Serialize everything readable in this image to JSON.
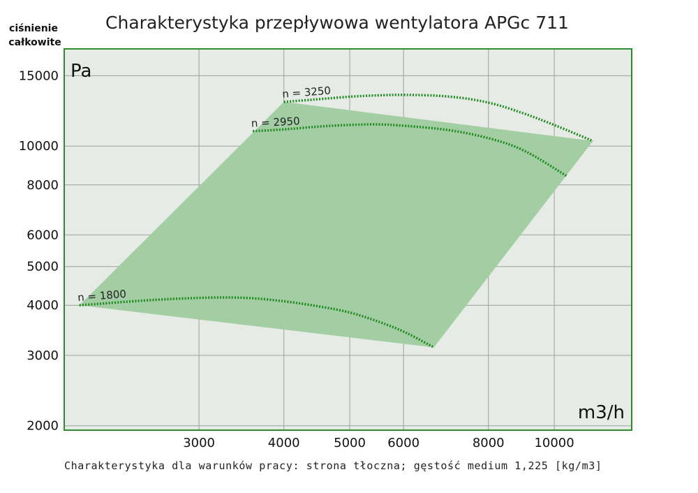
{
  "chart_data": {
    "type": "area",
    "title": "Charakterystyka przepływowa wentylatora APGc 711",
    "ylabel_line1": "ciśnienie",
    "ylabel_line2": "całkowite",
    "y_unit": "Pa",
    "x_unit": "m3/h",
    "x_scale": "log",
    "y_scale": "log",
    "xlim": [
      1900,
      13000
    ],
    "ylim": [
      1950,
      17500
    ],
    "x_ticks": [
      3000,
      4000,
      5000,
      6000,
      8000,
      10000
    ],
    "y_ticks": [
      2000,
      3000,
      4000,
      5000,
      6000,
      8000,
      10000,
      15000
    ],
    "grid": true,
    "fill_color": "#a3cda3",
    "curve_color": "#1e8a1e",
    "frame_color": "#2e8b2e",
    "plot_bg": "#e6ebe6",
    "operating_region": [
      [
        2000,
        4000
      ],
      [
        4000,
        12900
      ],
      [
        11400,
        10300
      ],
      [
        6650,
        3140
      ]
    ],
    "series": [
      {
        "name": "n = 1800",
        "label": "n = 1800",
        "points": [
          [
            2000,
            4000
          ],
          [
            2500,
            4120
          ],
          [
            3000,
            4180
          ],
          [
            3500,
            4190
          ],
          [
            4000,
            4100
          ],
          [
            4500,
            3980
          ],
          [
            5000,
            3850
          ],
          [
            5500,
            3650
          ],
          [
            6000,
            3450
          ],
          [
            6650,
            3140
          ]
        ]
      },
      {
        "name": "n = 2950",
        "label": "n = 2950",
        "points": [
          [
            3600,
            10900
          ],
          [
            4000,
            11000
          ],
          [
            4500,
            11200
          ],
          [
            5000,
            11300
          ],
          [
            5500,
            11350
          ],
          [
            6000,
            11250
          ],
          [
            7000,
            11000
          ],
          [
            8000,
            10500
          ],
          [
            9000,
            9850
          ],
          [
            10450,
            8400
          ]
        ]
      },
      {
        "name": "n = 3250",
        "label": "n = 3250",
        "points": [
          [
            4000,
            12900
          ],
          [
            4500,
            13100
          ],
          [
            5000,
            13300
          ],
          [
            5500,
            13400
          ],
          [
            6000,
            13450
          ],
          [
            7000,
            13350
          ],
          [
            8000,
            12900
          ],
          [
            9000,
            12100
          ],
          [
            10000,
            11300
          ],
          [
            11400,
            10300
          ]
        ]
      }
    ]
  },
  "footer": "Charakterystyka dla warunków pracy: strona tłoczna; gęstość medium 1,225 [kg/m3]"
}
